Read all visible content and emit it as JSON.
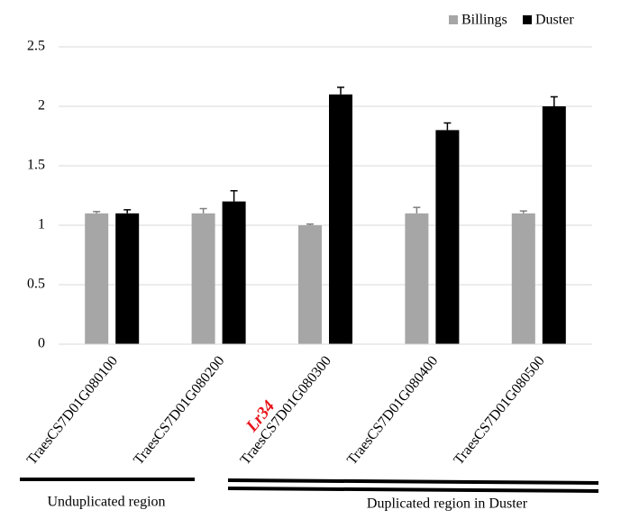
{
  "chart_data": {
    "type": "bar",
    "categories": [
      "TraesCS7D01G080100",
      "TraesCS7D01G080200",
      "TraesCS7D01G080300",
      "TraesCS7D01G080400",
      "TraesCS7D01G080500"
    ],
    "series": [
      {
        "name": "Billings",
        "color": "#a6a6a6",
        "values": [
          1.1,
          1.1,
          1.0,
          1.1,
          1.1
        ],
        "errors": [
          0.015,
          0.04,
          0.01,
          0.05,
          0.02
        ]
      },
      {
        "name": "Duster",
        "color": "#000000",
        "values": [
          1.1,
          1.2,
          2.1,
          1.8,
          2.0
        ],
        "errors": [
          0.03,
          0.09,
          0.06,
          0.06,
          0.08
        ]
      }
    ],
    "ylim": [
      0,
      2.5
    ],
    "yticks": [
      0,
      0.5,
      1,
      1.5,
      2,
      2.5
    ],
    "grid": true,
    "legend": "top-right",
    "annotations": [
      "Lr34",
      "Unduplicated region",
      "Duplicated region in Duster"
    ]
  }
}
